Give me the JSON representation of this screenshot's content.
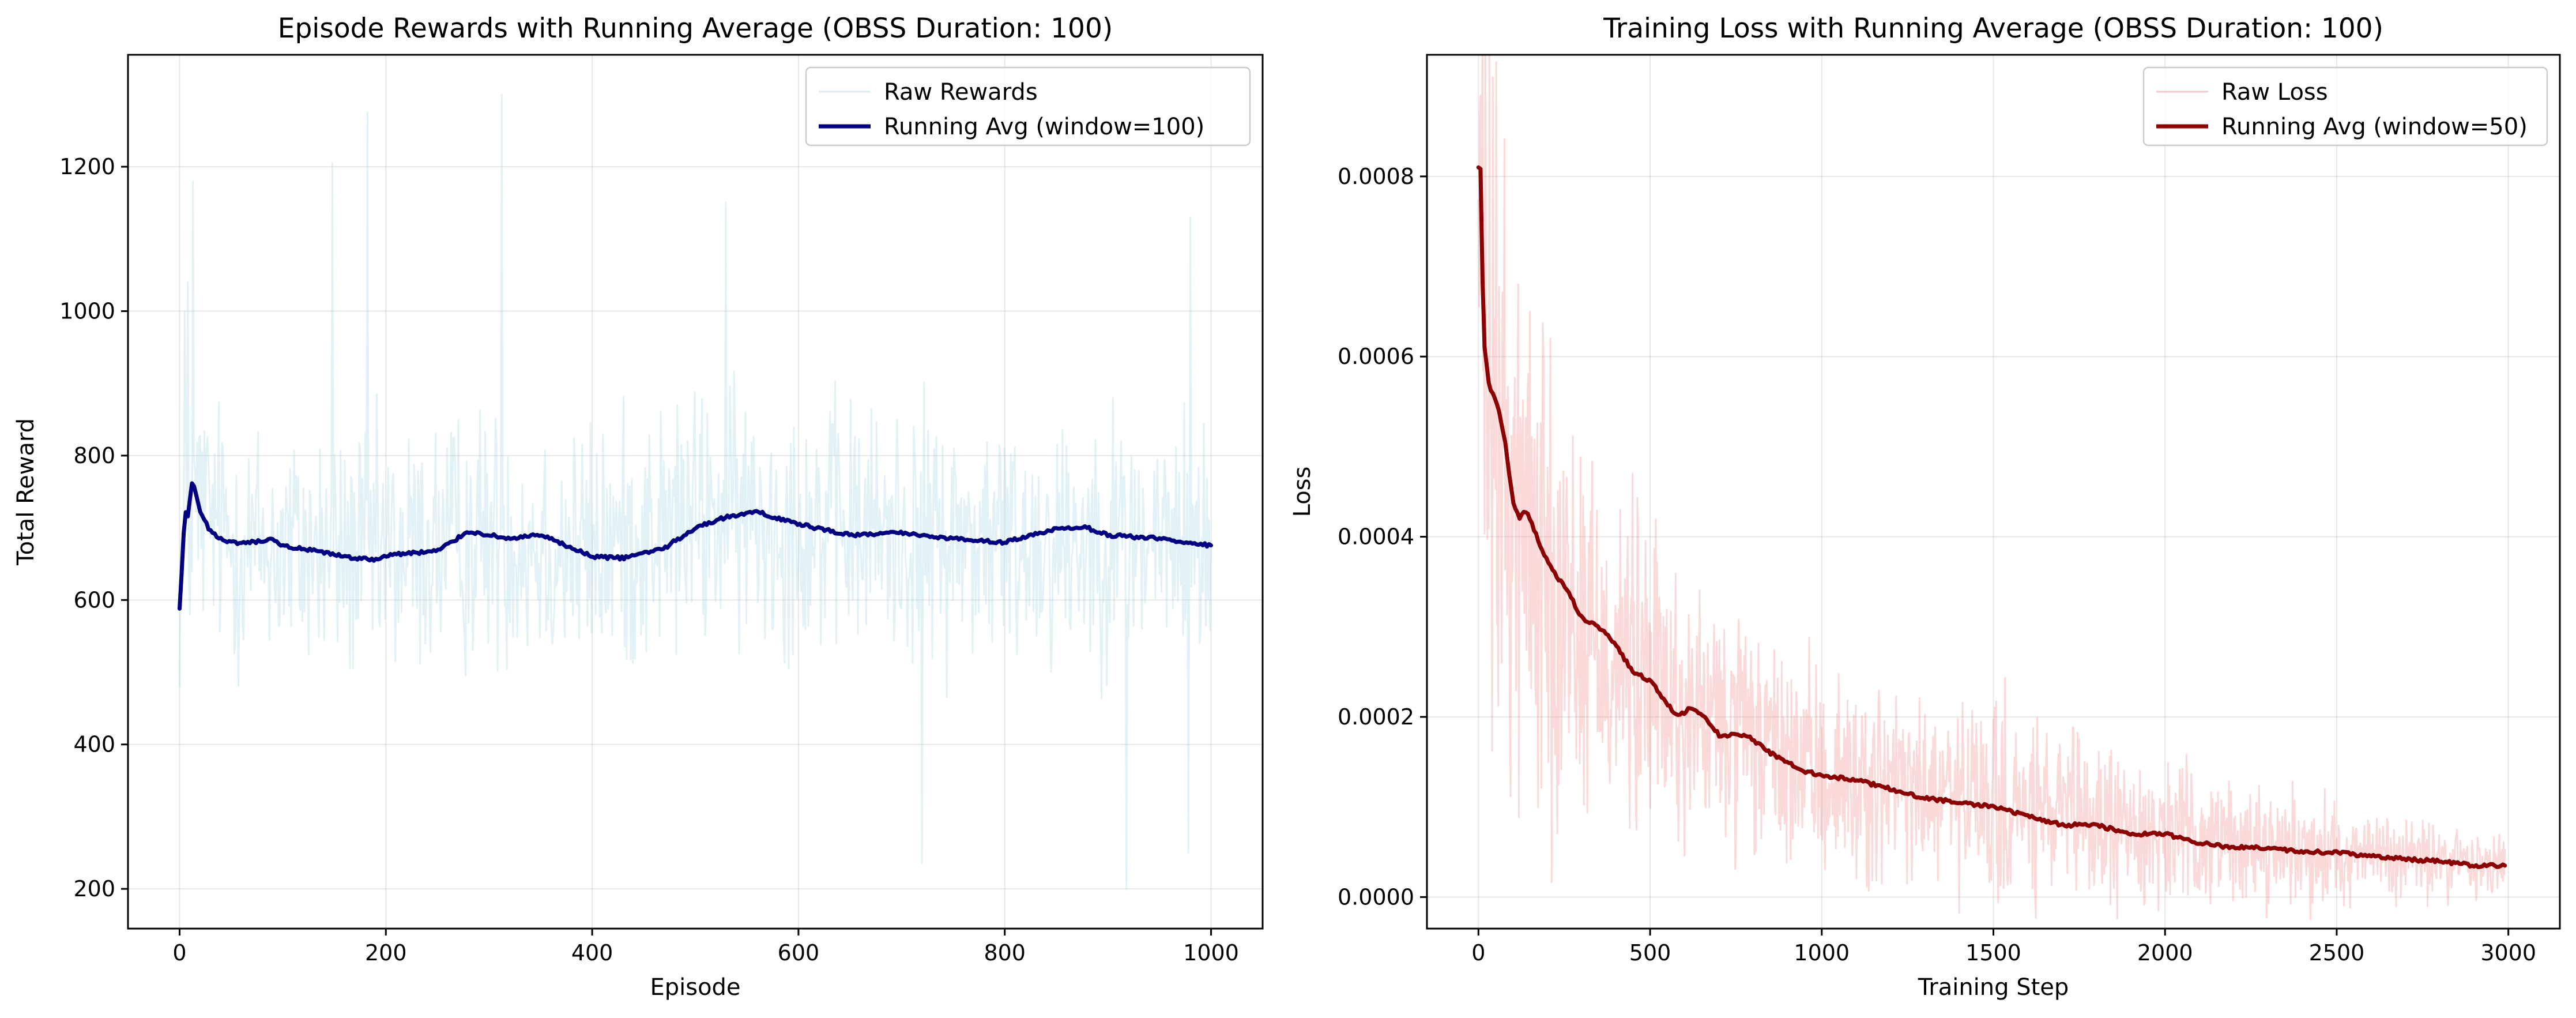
{
  "chart_data": [
    {
      "type": "line",
      "title": "Episode Rewards with Running Average (OBSS Duration: 100)",
      "xlabel": "Episode",
      "ylabel": "Total Reward",
      "xlim": [
        -50,
        1050
      ],
      "ylim": [
        145,
        1355
      ],
      "xticks": [
        0,
        200,
        400,
        600,
        800,
        1000
      ],
      "yticks": [
        200,
        400,
        600,
        800,
        1000,
        1200
      ],
      "grid": true,
      "legend_position": "top-right",
      "series": [
        {
          "name": "Raw Rewards",
          "color": "#add8e6",
          "kind": "noisy",
          "x_range": [
            0,
            1000
          ],
          "center": [
            [
              0,
              640
            ],
            [
              8,
              700
            ],
            [
              20,
              730
            ],
            [
              50,
              680
            ],
            [
              100,
              670
            ],
            [
              200,
              660
            ],
            [
              300,
              690
            ],
            [
              400,
              665
            ],
            [
              500,
              710
            ],
            [
              560,
              715
            ],
            [
              600,
              705
            ],
            [
              700,
              690
            ],
            [
              800,
              680
            ],
            [
              900,
              690
            ],
            [
              1000,
              672
            ]
          ],
          "spread": 145,
          "spikes": [
            [
              5,
              1000
            ],
            [
              8,
              1040
            ],
            [
              13,
              1180
            ],
            [
              182,
              1275
            ],
            [
              312,
              1300
            ],
            [
              148,
              1205
            ],
            [
              720,
              235
            ],
            [
              918,
              200
            ],
            [
              978,
              250
            ],
            [
              530,
              1150
            ],
            [
              980,
              1130
            ]
          ]
        },
        {
          "name": "Running Avg (window=100)",
          "color": "#000080",
          "kind": "smooth",
          "points": [
            [
              0,
              588
            ],
            [
              3,
              660
            ],
            [
              5,
              725
            ],
            [
              8,
              715
            ],
            [
              12,
              760
            ],
            [
              15,
              755
            ],
            [
              20,
              720
            ],
            [
              30,
              695
            ],
            [
              45,
              680
            ],
            [
              60,
              678
            ],
            [
              90,
              683
            ],
            [
              100,
              675
            ],
            [
              130,
              668
            ],
            [
              160,
              660
            ],
            [
              190,
              655
            ],
            [
              200,
              662
            ],
            [
              250,
              668
            ],
            [
              280,
              695
            ],
            [
              300,
              690
            ],
            [
              320,
              685
            ],
            [
              350,
              690
            ],
            [
              400,
              660
            ],
            [
              430,
              658
            ],
            [
              470,
              672
            ],
            [
              500,
              700
            ],
            [
              530,
              715
            ],
            [
              560,
              722
            ],
            [
              600,
              705
            ],
            [
              650,
              690
            ],
            [
              700,
              693
            ],
            [
              750,
              685
            ],
            [
              800,
              680
            ],
            [
              850,
              698
            ],
            [
              880,
              700
            ],
            [
              900,
              690
            ],
            [
              950,
              685
            ],
            [
              980,
              680
            ],
            [
              1000,
              675
            ]
          ]
        }
      ]
    },
    {
      "type": "line",
      "title": "Training Loss with Running Average (OBSS Duration: 100)",
      "xlabel": "Training Step",
      "ylabel": "Loss",
      "xlim": [
        -150,
        3150
      ],
      "ylim": [
        -3.5e-05,
        0.000935
      ],
      "xticks": [
        0,
        500,
        1000,
        1500,
        2000,
        2500,
        3000
      ],
      "yticks": [
        0,
        0.0002,
        0.0004,
        0.0006,
        0.0008
      ],
      "ytick_labels": [
        "0.0000",
        "0.0002",
        "0.0004",
        "0.0006",
        "0.0008"
      ],
      "grid": true,
      "legend_position": "top-right",
      "series": [
        {
          "name": "Raw Loss",
          "color": "#f08080",
          "kind": "noisy",
          "x_range": [
            0,
            2990
          ],
          "center": [
            [
              0,
              0.00085
            ],
            [
              10,
              0.00065
            ],
            [
              40,
              0.00052
            ],
            [
              100,
              0.00044
            ],
            [
              200,
              0.00036
            ],
            [
              300,
              0.0003
            ],
            [
              400,
              0.00027
            ],
            [
              500,
              0.00024
            ],
            [
              600,
              0.0002
            ],
            [
              700,
              0.00019
            ],
            [
              800,
              0.00017
            ],
            [
              900,
              0.00015
            ],
            [
              1000,
              0.000135
            ],
            [
              1200,
              0.00012
            ],
            [
              1500,
              0.0001
            ],
            [
              1800,
              8e-05
            ],
            [
              2000,
              7e-05
            ],
            [
              2200,
              6e-05
            ],
            [
              2500,
              5e-05
            ],
            [
              2800,
              4e-05
            ],
            [
              2990,
              3.5e-05
            ]
          ],
          "spread": 9e-05,
          "spread_decay": 0.0011,
          "spikes": [
            [
              5,
              0.00089
            ],
            [
              150,
              0.00065
            ],
            [
              210,
              0.00062
            ],
            [
              460,
              7.5e-05
            ],
            [
              2950,
              1e-05
            ]
          ]
        },
        {
          "name": "Running Avg (window=50)",
          "color": "#8b0000",
          "kind": "smooth",
          "points": [
            [
              0,
              0.00081
            ],
            [
              4,
              0.00085
            ],
            [
              15,
              0.00062
            ],
            [
              30,
              0.00057
            ],
            [
              60,
              0.00054
            ],
            [
              80,
              0.0005
            ],
            [
              100,
              0.00044
            ],
            [
              120,
              0.00042
            ],
            [
              140,
              0.00043
            ],
            [
              160,
              0.00041
            ],
            [
              190,
              0.00038
            ],
            [
              220,
              0.00036
            ],
            [
              260,
              0.00034
            ],
            [
              300,
              0.00031
            ],
            [
              350,
              0.0003
            ],
            [
              400,
              0.00028
            ],
            [
              450,
              0.00025
            ],
            [
              500,
              0.00024
            ],
            [
              540,
              0.00022
            ],
            [
              580,
              0.0002
            ],
            [
              620,
              0.00021
            ],
            [
              660,
              0.0002
            ],
            [
              700,
              0.00018
            ],
            [
              780,
              0.00018
            ],
            [
              850,
              0.00016
            ],
            [
              950,
              0.00014
            ],
            [
              1000,
              0.000135
            ],
            [
              1100,
              0.00013
            ],
            [
              1200,
              0.00012
            ],
            [
              1300,
              0.00011
            ],
            [
              1400,
              0.000105
            ],
            [
              1500,
              0.0001
            ],
            [
              1600,
              9e-05
            ],
            [
              1700,
              8e-05
            ],
            [
              1800,
              8e-05
            ],
            [
              1900,
              7e-05
            ],
            [
              2000,
              7e-05
            ],
            [
              2100,
              6e-05
            ],
            [
              2200,
              5.5e-05
            ],
            [
              2300,
              5.5e-05
            ],
            [
              2400,
              5e-05
            ],
            [
              2500,
              5e-05
            ],
            [
              2600,
              4.5e-05
            ],
            [
              2700,
              4.2e-05
            ],
            [
              2800,
              4e-05
            ],
            [
              2900,
              3.5e-05
            ],
            [
              2990,
              3.5e-05
            ]
          ]
        }
      ]
    }
  ]
}
